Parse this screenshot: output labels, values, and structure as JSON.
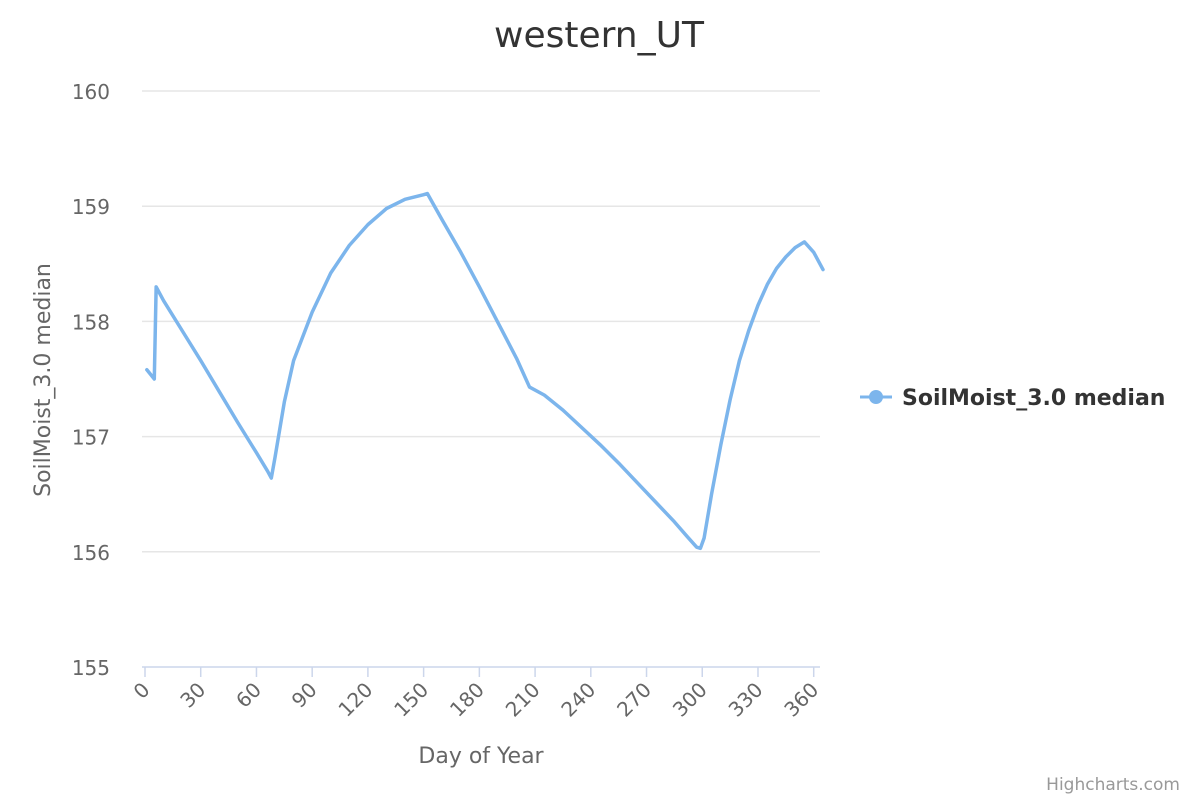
{
  "chart_data": {
    "type": "line",
    "title": "western_UT",
    "xlabel": "Day of Year",
    "ylabel": "SoilMoist_3.0 median",
    "xlim": [
      0,
      365
    ],
    "ylim": [
      155,
      160
    ],
    "x_ticks": [
      0,
      30,
      60,
      90,
      120,
      150,
      180,
      210,
      240,
      270,
      300,
      330,
      360
    ],
    "y_ticks": [
      155,
      156,
      157,
      158,
      159,
      160
    ],
    "grid": true,
    "legend_position": "right",
    "series": [
      {
        "name": "SoilMoist_3.0 median",
        "color": "#7cb5ec",
        "points": [
          [
            1,
            157.58
          ],
          [
            3,
            157.54
          ],
          [
            5,
            157.5
          ],
          [
            6,
            158.3
          ],
          [
            10,
            158.18
          ],
          [
            20,
            157.92
          ],
          [
            30,
            157.66
          ],
          [
            40,
            157.39
          ],
          [
            50,
            157.12
          ],
          [
            60,
            156.86
          ],
          [
            66,
            156.7
          ],
          [
            68,
            156.64
          ],
          [
            70,
            156.82
          ],
          [
            75,
            157.3
          ],
          [
            80,
            157.66
          ],
          [
            90,
            158.08
          ],
          [
            100,
            158.42
          ],
          [
            110,
            158.66
          ],
          [
            120,
            158.84
          ],
          [
            130,
            158.98
          ],
          [
            140,
            159.06
          ],
          [
            150,
            159.1
          ],
          [
            152,
            159.11
          ],
          [
            160,
            158.88
          ],
          [
            170,
            158.6
          ],
          [
            180,
            158.3
          ],
          [
            190,
            157.99
          ],
          [
            200,
            157.68
          ],
          [
            207,
            157.43
          ],
          [
            215,
            157.36
          ],
          [
            225,
            157.23
          ],
          [
            235,
            157.08
          ],
          [
            245,
            156.93
          ],
          [
            255,
            156.77
          ],
          [
            265,
            156.6
          ],
          [
            275,
            156.43
          ],
          [
            285,
            156.26
          ],
          [
            292,
            156.13
          ],
          [
            297,
            156.04
          ],
          [
            299,
            156.03
          ],
          [
            301,
            156.12
          ],
          [
            305,
            156.5
          ],
          [
            310,
            156.93
          ],
          [
            315,
            157.32
          ],
          [
            320,
            157.66
          ],
          [
            325,
            157.92
          ],
          [
            330,
            158.14
          ],
          [
            335,
            158.32
          ],
          [
            340,
            158.46
          ],
          [
            345,
            158.56
          ],
          [
            350,
            158.64
          ],
          [
            355,
            158.69
          ],
          [
            360,
            158.6
          ],
          [
            365,
            158.45
          ]
        ]
      }
    ]
  },
  "credits": "Highcharts.com"
}
